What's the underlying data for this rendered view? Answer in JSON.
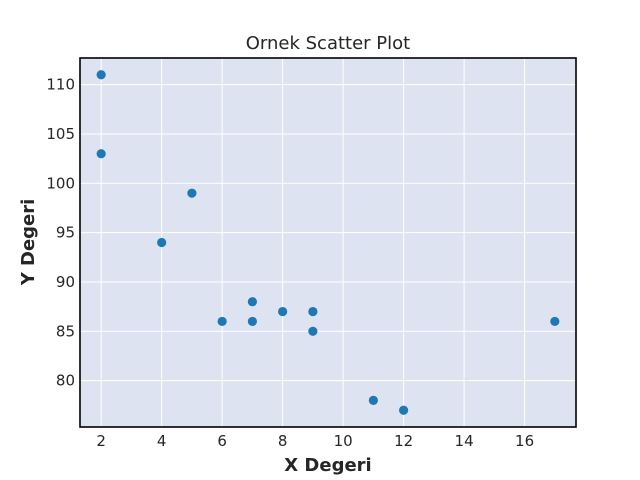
{
  "chart_data": {
    "type": "scatter",
    "title": "Ornek Scatter Plot",
    "xlabel": "X Degeri",
    "ylabel": "Y Degeri",
    "xlim": [
      1.3,
      17.7
    ],
    "ylim": [
      75.3,
      112.7
    ],
    "xticks": [
      2,
      4,
      6,
      8,
      10,
      12,
      14,
      16
    ],
    "yticks": [
      80,
      85,
      90,
      95,
      100,
      105,
      110
    ],
    "grid": true,
    "colors": {
      "plot_background": "#dde3f0",
      "grid": "#ffffff",
      "marker": "#1f77b4",
      "frame": "#000000"
    },
    "series": [
      {
        "x": [
          2,
          2,
          5,
          4,
          7,
          7,
          6,
          8,
          9,
          9,
          11,
          12,
          17
        ],
        "y": [
          111,
          103,
          99,
          94,
          88,
          86,
          86,
          87,
          87,
          85,
          78,
          77,
          86
        ]
      }
    ]
  }
}
